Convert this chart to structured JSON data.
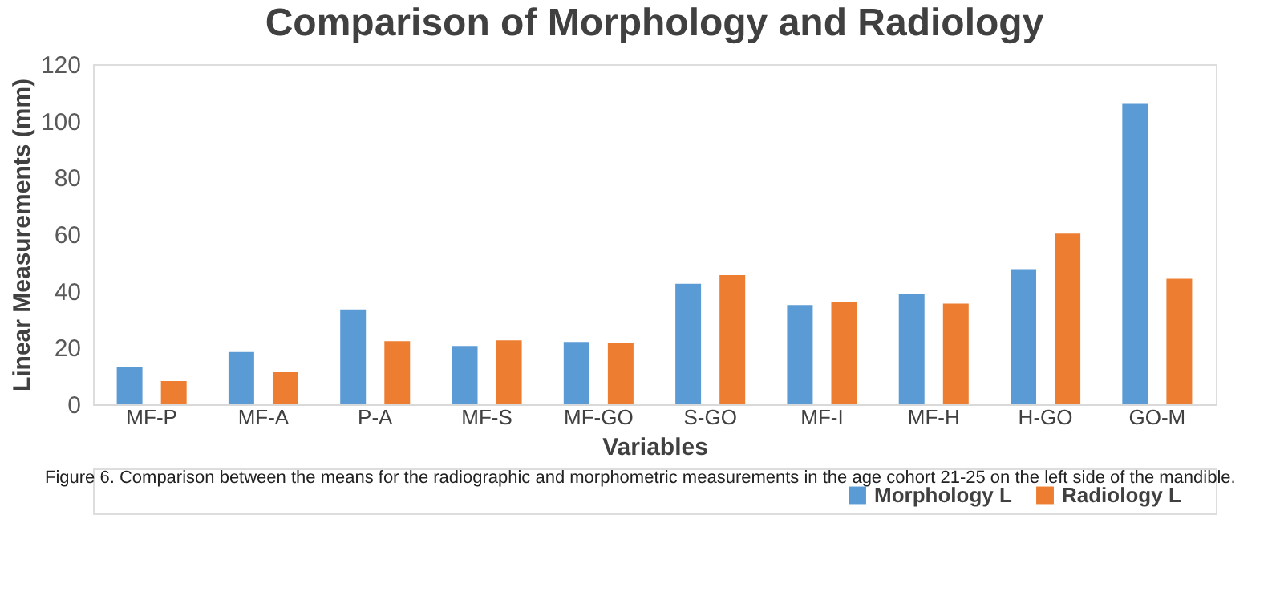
{
  "chart_data": {
    "type": "bar",
    "title": "Comparison of Morphology and Radiology",
    "xlabel": "Variables",
    "ylabel": "Linear Measurements (mm)",
    "categories": [
      "MF-P",
      "MF-A",
      "P-A",
      "MF-S",
      "MF-GO",
      "S-GO",
      "MF-I",
      "MF-H",
      "H-GO",
      "GO-M"
    ],
    "series": [
      {
        "name": "Morphology L",
        "color": "#5b9bd5",
        "values": [
          13.2,
          18.5,
          33.5,
          20.6,
          22,
          42.5,
          35,
          39,
          47.7,
          106
        ]
      },
      {
        "name": "Radiology L",
        "color": "#ed7d31",
        "values": [
          8.2,
          11.3,
          22.3,
          22.6,
          21.6,
          45.6,
          36,
          35.5,
          60.2,
          44.3
        ]
      }
    ],
    "ylim": [
      0,
      120
    ],
    "yticks": [
      0,
      20,
      40,
      60,
      80,
      100,
      120
    ],
    "grid": false,
    "legend": "bottom right",
    "annotations": [
      "Figure 6. Comparison between the means for the radiographic and morphometric measurements in the age cohort 21-25 on the left side of the mandible."
    ]
  }
}
